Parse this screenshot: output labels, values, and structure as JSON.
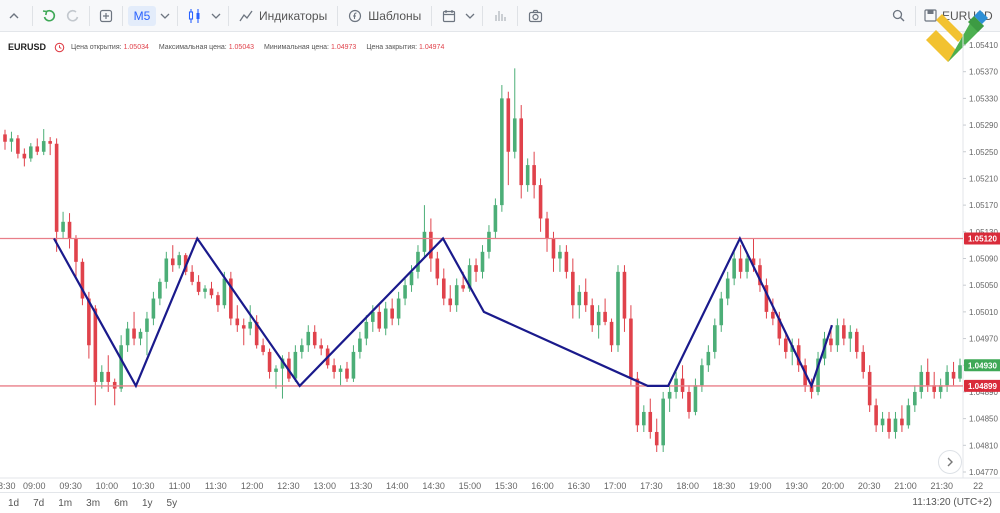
{
  "toolbar": {
    "timeframe": "M5",
    "indicators_label": "Индикаторы",
    "templates_label": "Шаблоны",
    "symbol_label": "EURUSD"
  },
  "info": {
    "symbol": "EURUSD",
    "open_label": "Цена открытия:",
    "open_value": "1.05034",
    "high_label": "Максимальная цена:",
    "high_value": "1.05043",
    "low_label": "Минимальная цена:",
    "low_value": "1.04973",
    "close_label": "Цена закрытия:",
    "close_value": "1.04974"
  },
  "bottom": {
    "ranges": [
      "1d",
      "7d",
      "1m",
      "3m",
      "6m",
      "1y",
      "5y"
    ],
    "clock": "11:13:20 (UTC+2)"
  },
  "colors": {
    "up": "#4cae77",
    "down": "#e0424b",
    "zigzag": "#1a1a8c",
    "level": "#e97e88",
    "level_label": "#d92b3a",
    "last_price": "#3fa857"
  },
  "chart_data": {
    "type": "candlestick",
    "symbol": "EURUSD",
    "timeframe": "M5",
    "ylim": [
      1.0477,
      1.0541
    ],
    "y_ticks": [
      "1.05410",
      "1.05370",
      "1.05330",
      "1.05290",
      "1.05250",
      "1.05210",
      "1.05170",
      "1.05130",
      "1.05090",
      "1.05050",
      "1.05010",
      "1.04970",
      "1.04930",
      "1.04890",
      "1.04850",
      "1.04810",
      "1.04770"
    ],
    "x_ticks": [
      "8:30",
      "09:00",
      "09:30",
      "10:00",
      "10:30",
      "11:00",
      "11:30",
      "12:00",
      "12:30",
      "13:00",
      "13:30",
      "14:00",
      "14:30",
      "15:00",
      "15:30",
      "16:00",
      "16:30",
      "17:00",
      "17:30",
      "18:00",
      "18:30",
      "19:00",
      "19:30",
      "20:00",
      "20:30",
      "21:00",
      "21:30",
      "22"
    ],
    "levels": [
      {
        "value": 1.0512,
        "label": "1.05120"
      },
      {
        "value": 1.04899,
        "label": "1.04899"
      }
    ],
    "last_price": {
      "value": 1.0493,
      "label": "1.04930"
    },
    "candles": [
      [
        1.05276,
        1.05283,
        1.05253,
        1.05265
      ],
      [
        1.05265,
        1.0528,
        1.0525,
        1.0527
      ],
      [
        1.0527,
        1.05275,
        1.0524,
        1.05247
      ],
      [
        1.05247,
        1.05255,
        1.05228,
        1.0524
      ],
      [
        1.0524,
        1.05263,
        1.05235,
        1.05258
      ],
      [
        1.05258,
        1.0527,
        1.05245,
        1.0525
      ],
      [
        1.0525,
        1.05284,
        1.05245,
        1.05266
      ],
      [
        1.05266,
        1.05272,
        1.05245,
        1.05262
      ],
      [
        1.05262,
        1.0527,
        1.051,
        1.0513
      ],
      [
        1.0513,
        1.0516,
        1.0512,
        1.05145
      ],
      [
        1.05145,
        1.05158,
        1.05105,
        1.0512
      ],
      [
        1.0512,
        1.05125,
        1.0506,
        1.05085
      ],
      [
        1.05085,
        1.0509,
        1.0502,
        1.0503
      ],
      [
        1.0503,
        1.0504,
        1.0494,
        1.0496
      ],
      [
        1.05015,
        1.0502,
        1.0487,
        1.04905
      ],
      [
        1.04905,
        1.0493,
        1.04895,
        1.0492
      ],
      [
        1.0492,
        1.04945,
        1.0489,
        1.04905
      ],
      [
        1.04905,
        1.0491,
        1.0487,
        1.04895
      ],
      [
        1.04895,
        1.04975,
        1.0489,
        1.0496
      ],
      [
        1.0496,
        1.04995,
        1.0495,
        1.04985
      ],
      [
        1.04985,
        1.0501,
        1.0496,
        1.0497
      ],
      [
        1.0497,
        1.04985,
        1.0496,
        1.0498
      ],
      [
        1.0498,
        1.0501,
        1.04945,
        1.05
      ],
      [
        1.05,
        1.0504,
        1.0499,
        1.0503
      ],
      [
        1.0503,
        1.0506,
        1.0502,
        1.05055
      ],
      [
        1.05055,
        1.051,
        1.05045,
        1.0509
      ],
      [
        1.0509,
        1.0511,
        1.0507,
        1.0508
      ],
      [
        1.0508,
        1.051,
        1.05075,
        1.05095
      ],
      [
        1.05095,
        1.05098,
        1.05065,
        1.0507
      ],
      [
        1.0507,
        1.0508,
        1.0505,
        1.05055
      ],
      [
        1.05055,
        1.05065,
        1.05035,
        1.0504
      ],
      [
        1.0504,
        1.0505,
        1.0503,
        1.05045
      ],
      [
        1.05045,
        1.05055,
        1.0503,
        1.05035
      ],
      [
        1.05035,
        1.0504,
        1.0501,
        1.0502
      ],
      [
        1.0502,
        1.0507,
        1.05015,
        1.0506
      ],
      [
        1.0506,
        1.0507,
        1.0499,
        1.05
      ],
      [
        1.05,
        1.0502,
        1.0498,
        1.0499
      ],
      [
        1.0499,
        1.05,
        1.0496,
        1.04985
      ],
      [
        1.04985,
        1.0502,
        1.04975,
        1.04995
      ],
      [
        1.04995,
        1.05005,
        1.04955,
        1.0496
      ],
      [
        1.0496,
        1.0497,
        1.04945,
        1.0495
      ],
      [
        1.0495,
        1.04955,
        1.0491,
        1.0492
      ],
      [
        1.0492,
        1.0493,
        1.04895,
        1.04925
      ],
      [
        1.04925,
        1.04945,
        1.0488,
        1.0494
      ],
      [
        1.0494,
        1.0495,
        1.04905,
        1.0491
      ],
      [
        1.0491,
        1.0496,
        1.04905,
        1.0495
      ],
      [
        1.0495,
        1.0497,
        1.0494,
        1.0496
      ],
      [
        1.0496,
        1.0499,
        1.0495,
        1.0498
      ],
      [
        1.0498,
        1.0499,
        1.04955,
        1.0496
      ],
      [
        1.0496,
        1.0497,
        1.04945,
        1.04955
      ],
      [
        1.04955,
        1.0496,
        1.04925,
        1.0493
      ],
      [
        1.0493,
        1.0494,
        1.0491,
        1.0492
      ],
      [
        1.0492,
        1.0493,
        1.049,
        1.04925
      ],
      [
        1.04925,
        1.04935,
        1.04905,
        1.0491
      ],
      [
        1.0491,
        1.0496,
        1.04905,
        1.0495
      ],
      [
        1.0495,
        1.0498,
        1.0494,
        1.0497
      ],
      [
        1.0497,
        1.05005,
        1.0496,
        1.04995
      ],
      [
        1.04995,
        1.0502,
        1.0498,
        1.0501
      ],
      [
        1.0501,
        1.0502,
        1.0498,
        1.04985
      ],
      [
        1.04985,
        1.05025,
        1.04975,
        1.05015
      ],
      [
        1.05015,
        1.0503,
        1.0499,
        1.05
      ],
      [
        1.05,
        1.0504,
        1.0499,
        1.0503
      ],
      [
        1.0503,
        1.0506,
        1.0502,
        1.0505
      ],
      [
        1.0505,
        1.0508,
        1.0504,
        1.0507
      ],
      [
        1.0507,
        1.0511,
        1.0506,
        1.051
      ],
      [
        1.051,
        1.0517,
        1.0509,
        1.0513
      ],
      [
        1.0513,
        1.0515,
        1.0507,
        1.0509
      ],
      [
        1.0509,
        1.051,
        1.0505,
        1.0506
      ],
      [
        1.0506,
        1.05075,
        1.0502,
        1.0503
      ],
      [
        1.0503,
        1.0505,
        1.0501,
        1.0502
      ],
      [
        1.0502,
        1.0506,
        1.0501,
        1.0505
      ],
      [
        1.0505,
        1.0507,
        1.0504,
        1.05045
      ],
      [
        1.05045,
        1.0509,
        1.0504,
        1.0508
      ],
      [
        1.0508,
        1.0509,
        1.05055,
        1.0507
      ],
      [
        1.0507,
        1.0511,
        1.0506,
        1.051
      ],
      [
        1.051,
        1.0514,
        1.0509,
        1.0513
      ],
      [
        1.0513,
        1.0518,
        1.0512,
        1.0517
      ],
      [
        1.0517,
        1.0535,
        1.0516,
        1.0533
      ],
      [
        1.0533,
        1.0534,
        1.052,
        1.0525
      ],
      [
        1.0525,
        1.05375,
        1.0524,
        1.053
      ],
      [
        1.053,
        1.0532,
        1.0518,
        1.052
      ],
      [
        1.052,
        1.0524,
        1.0519,
        1.0523
      ],
      [
        1.0523,
        1.0525,
        1.0518,
        1.052
      ],
      [
        1.052,
        1.0521,
        1.0513,
        1.0515
      ],
      [
        1.0515,
        1.0516,
        1.051,
        1.0512
      ],
      [
        1.0512,
        1.0513,
        1.0507,
        1.0509
      ],
      [
        1.0509,
        1.0511,
        1.0507,
        1.051
      ],
      [
        1.051,
        1.0511,
        1.0506,
        1.0507
      ],
      [
        1.0507,
        1.0509,
        1.05,
        1.0502
      ],
      [
        1.0502,
        1.0505,
        1.05,
        1.0504
      ],
      [
        1.0504,
        1.0506,
        1.0501,
        1.0502
      ],
      [
        1.0502,
        1.0503,
        1.0498,
        1.0499
      ],
      [
        1.0499,
        1.0502,
        1.0497,
        1.0501
      ],
      [
        1.0501,
        1.0503,
        1.0499,
        1.04995
      ],
      [
        1.04995,
        1.05,
        1.0495,
        1.0496
      ],
      [
        1.0496,
        1.0508,
        1.0495,
        1.0507
      ],
      [
        1.0507,
        1.0508,
        1.0498,
        1.05
      ],
      [
        1.05,
        1.0502,
        1.049,
        1.0491
      ],
      [
        1.0491,
        1.0492,
        1.0483,
        1.0484
      ],
      [
        1.0484,
        1.0487,
        1.0483,
        1.0486
      ],
      [
        1.0486,
        1.0488,
        1.0482,
        1.0483
      ],
      [
        1.0483,
        1.0485,
        1.048,
        1.0481
      ],
      [
        1.0481,
        1.0489,
        1.048,
        1.0488
      ],
      [
        1.0488,
        1.049,
        1.0486,
        1.0489
      ],
      [
        1.0489,
        1.0492,
        1.0488,
        1.0491
      ],
      [
        1.0491,
        1.0493,
        1.0488,
        1.0489
      ],
      [
        1.0489,
        1.049,
        1.0485,
        1.0486
      ],
      [
        1.0486,
        1.0491,
        1.04855,
        1.049
      ],
      [
        1.049,
        1.0494,
        1.0489,
        1.0493
      ],
      [
        1.0493,
        1.0496,
        1.0492,
        1.0495
      ],
      [
        1.0495,
        1.05,
        1.0494,
        1.0499
      ],
      [
        1.0499,
        1.0504,
        1.0498,
        1.0503
      ],
      [
        1.0503,
        1.0507,
        1.0502,
        1.0506
      ],
      [
        1.0506,
        1.051,
        1.0505,
        1.0509
      ],
      [
        1.0509,
        1.0511,
        1.0506,
        1.0507
      ],
      [
        1.0507,
        1.051,
        1.0506,
        1.0509
      ],
      [
        1.0509,
        1.0512,
        1.0507,
        1.0508
      ],
      [
        1.0508,
        1.0509,
        1.0504,
        1.0505
      ],
      [
        1.0505,
        1.0506,
        1.05,
        1.0501
      ],
      [
        1.0501,
        1.0503,
        1.0499,
        1.05
      ],
      [
        1.05,
        1.0501,
        1.0496,
        1.0497
      ],
      [
        1.0497,
        1.0498,
        1.0494,
        1.0495
      ],
      [
        1.0495,
        1.0497,
        1.0493,
        1.0496
      ],
      [
        1.0496,
        1.0497,
        1.0492,
        1.0493
      ],
      [
        1.0493,
        1.0494,
        1.0489,
        1.049
      ],
      [
        1.049,
        1.0491,
        1.0488,
        1.0489
      ],
      [
        1.0489,
        1.0495,
        1.04885,
        1.0494
      ],
      [
        1.0494,
        1.0498,
        1.0493,
        1.0497
      ],
      [
        1.0497,
        1.0499,
        1.0495,
        1.0496
      ],
      [
        1.0496,
        1.05,
        1.0495,
        1.0499
      ],
      [
        1.0499,
        1.05,
        1.0496,
        1.0497
      ],
      [
        1.0497,
        1.0499,
        1.0495,
        1.0498
      ],
      [
        1.0498,
        1.04985,
        1.0494,
        1.0495
      ],
      [
        1.0495,
        1.0496,
        1.0491,
        1.0492
      ],
      [
        1.0492,
        1.0493,
        1.0486,
        1.0487
      ],
      [
        1.0487,
        1.0488,
        1.0483,
        1.0484
      ],
      [
        1.0484,
        1.0486,
        1.0483,
        1.0485
      ],
      [
        1.0485,
        1.0486,
        1.0482,
        1.0483
      ],
      [
        1.0483,
        1.0486,
        1.0482,
        1.0485
      ],
      [
        1.0485,
        1.0487,
        1.0483,
        1.0484
      ],
      [
        1.0484,
        1.0488,
        1.04835,
        1.0487
      ],
      [
        1.0487,
        1.049,
        1.0486,
        1.0489
      ],
      [
        1.0489,
        1.0493,
        1.0488,
        1.0492
      ],
      [
        1.0492,
        1.0494,
        1.0489,
        1.049
      ],
      [
        1.049,
        1.0492,
        1.0488,
        1.0489
      ],
      [
        1.0489,
        1.0491,
        1.0488,
        1.049
      ],
      [
        1.049,
        1.0493,
        1.0489,
        1.0492
      ],
      [
        1.0492,
        1.04935,
        1.049,
        1.0491
      ],
      [
        1.0491,
        1.0494,
        1.04905,
        1.0493
      ]
    ],
    "zigzag": [
      [
        0,
        1.0512
      ],
      [
        8,
        1.04899
      ],
      [
        14,
        1.0512
      ],
      [
        24,
        1.04899
      ],
      [
        38,
        1.0512
      ],
      [
        42,
        1.0501
      ],
      [
        58,
        1.04899
      ],
      [
        60,
        1.04899
      ],
      [
        67,
        1.0512
      ],
      [
        74,
        1.04899
      ],
      [
        76,
        1.0499
      ]
    ]
  }
}
